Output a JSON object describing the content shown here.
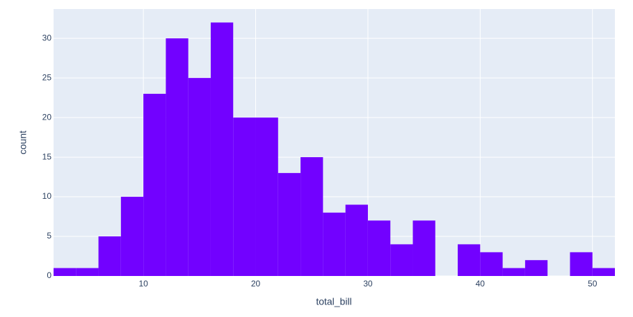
{
  "chart_data": {
    "type": "histogram",
    "x_label": "total_bill",
    "y_label": "count",
    "bins": [
      2,
      4,
      6,
      8,
      10,
      12,
      14,
      16,
      18,
      20,
      22,
      24,
      26,
      28,
      30,
      32,
      34,
      36,
      38,
      40,
      42,
      44,
      46,
      48,
      50,
      52
    ],
    "counts": [
      1,
      1,
      5,
      10,
      23,
      30,
      25,
      32,
      20,
      20,
      13,
      15,
      8,
      9,
      7,
      4,
      7,
      0,
      4,
      3,
      1,
      2,
      0,
      3,
      1
    ],
    "color": "#7201ff",
    "xlim": [
      2,
      52
    ],
    "xticks": [
      10,
      20,
      30,
      40,
      50
    ],
    "ylim": [
      0,
      33.7
    ],
    "yticks": [
      0,
      5,
      10,
      15,
      20,
      25,
      30
    ],
    "grid": true
  }
}
